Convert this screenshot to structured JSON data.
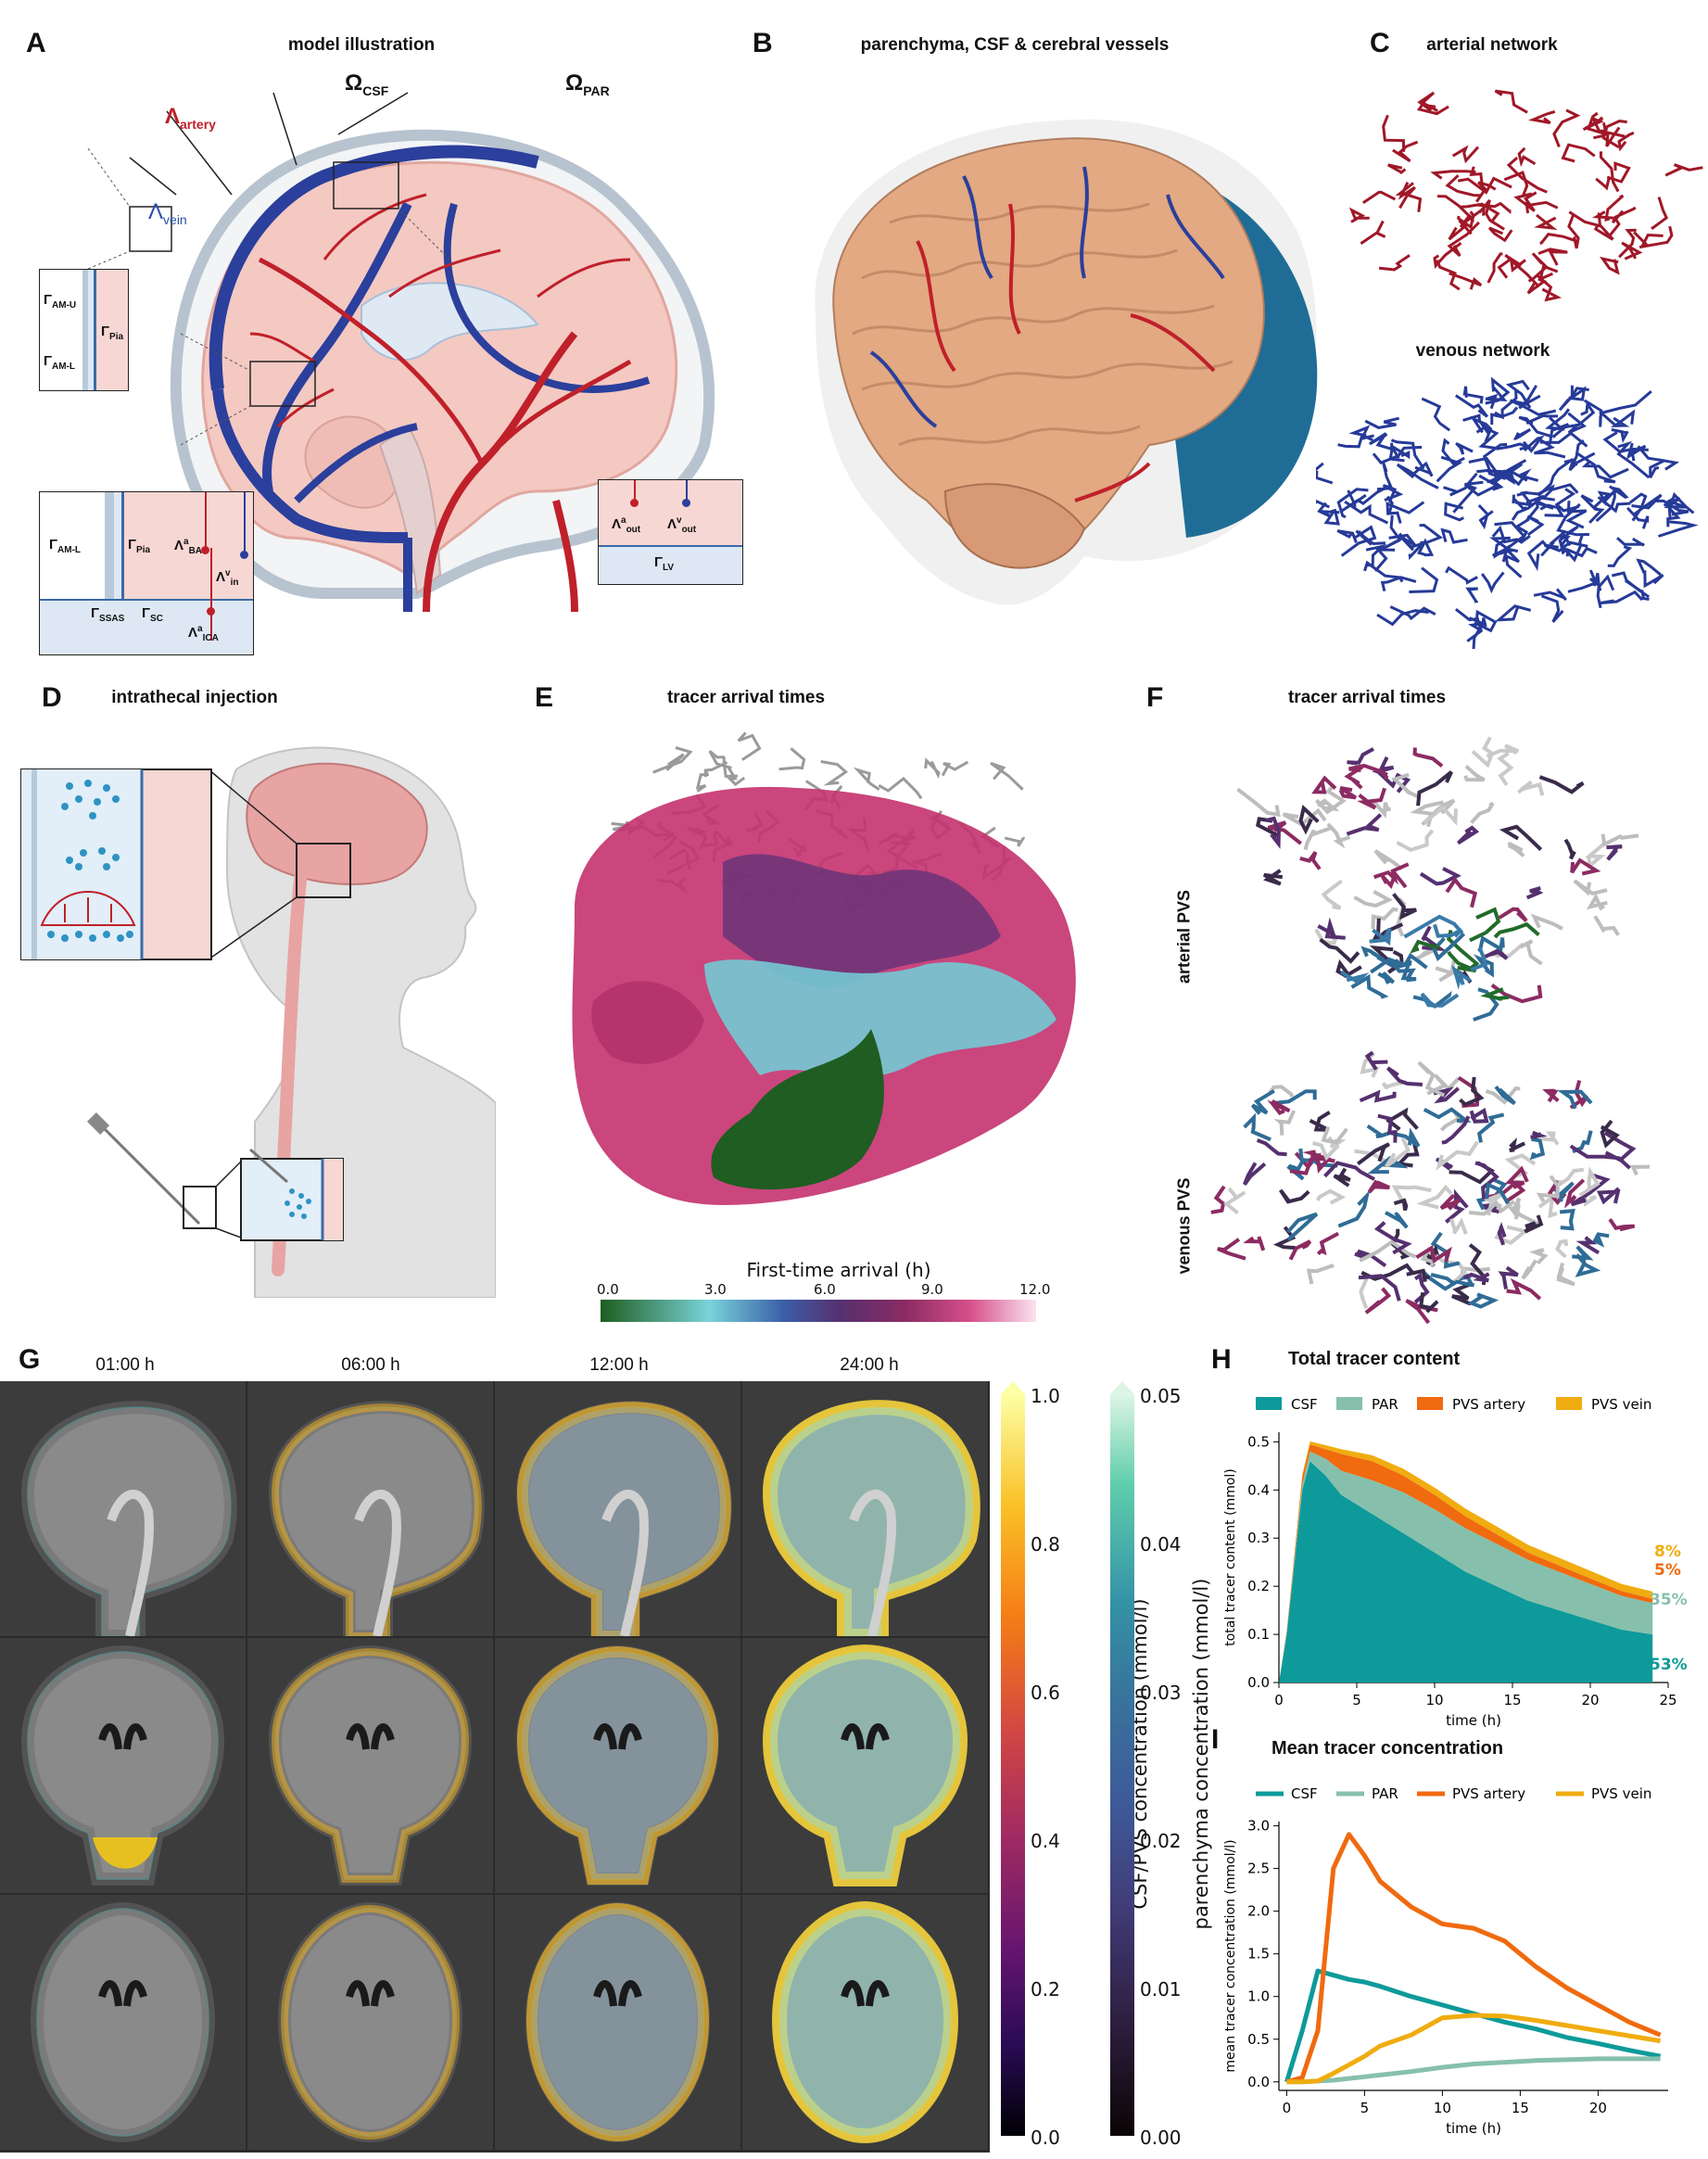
{
  "panels": {
    "A": {
      "letter": "A",
      "title": "model illustration",
      "labels": {
        "omega_csf": "Ω",
        "omega_csf_sub": "CSF",
        "omega_par": "Ω",
        "omega_par_sub": "PAR",
        "lambda_artery": "Λ",
        "lambda_artery_sub": "artery",
        "lambda_vein": "Λ",
        "lambda_vein_sub": "vein",
        "gamma_amu": "Γ",
        "gamma_amu_sub": "AM-U",
        "gamma_aml": "Γ",
        "gamma_aml_sub": "AM-L",
        "gamma_pia": "Γ",
        "gamma_pia_sub": "Pia",
        "b_gamma_aml": "Γ",
        "b_gamma_aml_sub": "AM-L",
        "b_gamma_pia": "Γ",
        "b_gamma_pia_sub": "Pia",
        "b_lambda_ba": "Λ",
        "b_lambda_ba_sup": "a",
        "b_lambda_ba_sub": "BA",
        "b_lambda_in": "Λ",
        "b_lambda_in_sup": "v",
        "b_lambda_in_sub": "in",
        "b_gamma_ssas": "Γ",
        "b_gamma_ssas_sub": "SSAS",
        "b_gamma_sc": "Γ",
        "b_gamma_sc_sub": "SC",
        "b_lambda_ica": "Λ",
        "b_lambda_ica_sup": "a",
        "b_lambda_ica_sub": "ICA",
        "r_lambda_aout": "Λ",
        "r_lambda_aout_sup": "a",
        "r_lambda_aout_sub": "out",
        "r_lambda_vout": "Λ",
        "r_lambda_vout_sup": "v",
        "r_lambda_vout_sub": "out",
        "r_gamma_lv": "Γ",
        "r_gamma_lv_sub": "LV"
      }
    },
    "B": {
      "letter": "B",
      "title": "parenchyma, CSF  & cerebral vessels"
    },
    "C": {
      "letter": "C",
      "title": "arterial network",
      "subtitle": "venous network"
    },
    "D": {
      "letter": "D",
      "title": "intrathecal injection"
    },
    "E": {
      "letter": "E",
      "title": "tracer arrival times",
      "colorbar_label": "First-time arrival (h)",
      "ticks": [
        "0.0",
        "3.0",
        "6.0",
        "9.0",
        "12.0"
      ]
    },
    "F": {
      "letter": "F",
      "title": "tracer arrival times",
      "row1": "arterial PVS",
      "row2": "venous PVS"
    },
    "G": {
      "letter": "G",
      "times": [
        "01:00 h",
        "06:00 h",
        "12:00 h",
        "24:00 h"
      ],
      "cbar1_label": "CSF/PVS concentration (mmol/l)",
      "cbar1_ticks": [
        "1.0",
        "0.8",
        "0.6",
        "0.4",
        "0.2",
        "0.0"
      ],
      "cbar2_label": "parenchyma concentration (mmol/l)",
      "cbar2_ticks": [
        "0.05",
        "0.04",
        "0.03",
        "0.02",
        "0.01",
        "0.00"
      ]
    },
    "H": {
      "letter": "H",
      "title": "Total tracer content",
      "pct_labels": [
        "8%",
        "5%",
        "35%",
        "53%"
      ]
    },
    "I": {
      "letter": "I",
      "title": "Mean tracer concentration"
    }
  },
  "colors": {
    "csf": "#0e9a9a",
    "par": "#86c0ac",
    "pvs_artery": "#f06a0f",
    "pvs_vein": "#f0ac10",
    "artery": "#c0202a",
    "vein": "#2b3f9c",
    "brain": "#e2a982"
  },
  "chart_data": [
    {
      "type": "area",
      "title": "Total tracer content",
      "xlabel": "time (h)",
      "ylabel": "total tracer content (mmol)",
      "xlim": [
        0,
        25
      ],
      "ylim": [
        0,
        0.52
      ],
      "xticks": [
        "0",
        "5",
        "10",
        "15",
        "20",
        "25"
      ],
      "yticks": [
        "0.0",
        "0.1",
        "0.2",
        "0.3",
        "0.4",
        "0.5"
      ],
      "legend": "top",
      "grid": false,
      "x": [
        0,
        0.5,
        1,
        1.5,
        2,
        3,
        4,
        6,
        8,
        10,
        12,
        14,
        16,
        18,
        20,
        22,
        24
      ],
      "series": [
        {
          "name": "CSF",
          "values": [
            0,
            0.1,
            0.25,
            0.4,
            0.46,
            0.43,
            0.39,
            0.35,
            0.31,
            0.27,
            0.23,
            0.2,
            0.17,
            0.15,
            0.13,
            0.11,
            0.1
          ]
        },
        {
          "name": "PAR",
          "values": [
            0,
            0.002,
            0.006,
            0.012,
            0.02,
            0.035,
            0.05,
            0.07,
            0.085,
            0.09,
            0.09,
            0.088,
            0.085,
            0.08,
            0.075,
            0.07,
            0.065
          ]
        },
        {
          "name": "PVS artery",
          "values": [
            0,
            0.004,
            0.01,
            0.015,
            0.015,
            0.02,
            0.035,
            0.04,
            0.035,
            0.03,
            0.025,
            0.02,
            0.015,
            0.013,
            0.011,
            0.01,
            0.009
          ]
        },
        {
          "name": "PVS vein",
          "values": [
            0,
            0.001,
            0.003,
            0.005,
            0.006,
            0.008,
            0.01,
            0.012,
            0.014,
            0.015,
            0.016,
            0.016,
            0.016,
            0.016,
            0.016,
            0.015,
            0.015
          ]
        }
      ]
    },
    {
      "type": "line",
      "title": "Mean tracer concentration",
      "xlabel": "time (h)",
      "ylabel": "mean tracer concentration (mmol/l)",
      "xlim": [
        -0.5,
        24.5
      ],
      "ylim": [
        -0.1,
        3.05
      ],
      "xticks": [
        "0",
        "5",
        "10",
        "15",
        "20"
      ],
      "yticks": [
        "0.0",
        "0.5",
        "1.0",
        "1.5",
        "2.0",
        "2.5",
        "3.0"
      ],
      "legend": "top",
      "grid": false,
      "x": [
        0,
        1,
        2,
        3,
        4,
        5,
        6,
        8,
        10,
        12,
        14,
        16,
        18,
        20,
        22,
        24
      ],
      "series": [
        {
          "name": "CSF",
          "values": [
            0,
            0.6,
            1.3,
            1.25,
            1.2,
            1.17,
            1.12,
            1.0,
            0.9,
            0.8,
            0.7,
            0.62,
            0.52,
            0.45,
            0.37,
            0.3
          ]
        },
        {
          "name": "PAR",
          "values": [
            0,
            0,
            0.01,
            0.02,
            0.04,
            0.06,
            0.08,
            0.12,
            0.17,
            0.21,
            0.23,
            0.25,
            0.26,
            0.27,
            0.27,
            0.27
          ]
        },
        {
          "name": "PVS artery",
          "values": [
            0,
            0.05,
            0.6,
            2.5,
            2.9,
            2.65,
            2.35,
            2.05,
            1.85,
            1.8,
            1.65,
            1.35,
            1.1,
            0.9,
            0.7,
            0.55
          ]
        },
        {
          "name": "PVS vein",
          "values": [
            0,
            0,
            0.01,
            0.1,
            0.2,
            0.3,
            0.42,
            0.55,
            0.75,
            0.78,
            0.77,
            0.72,
            0.66,
            0.6,
            0.54,
            0.48
          ]
        }
      ]
    }
  ]
}
